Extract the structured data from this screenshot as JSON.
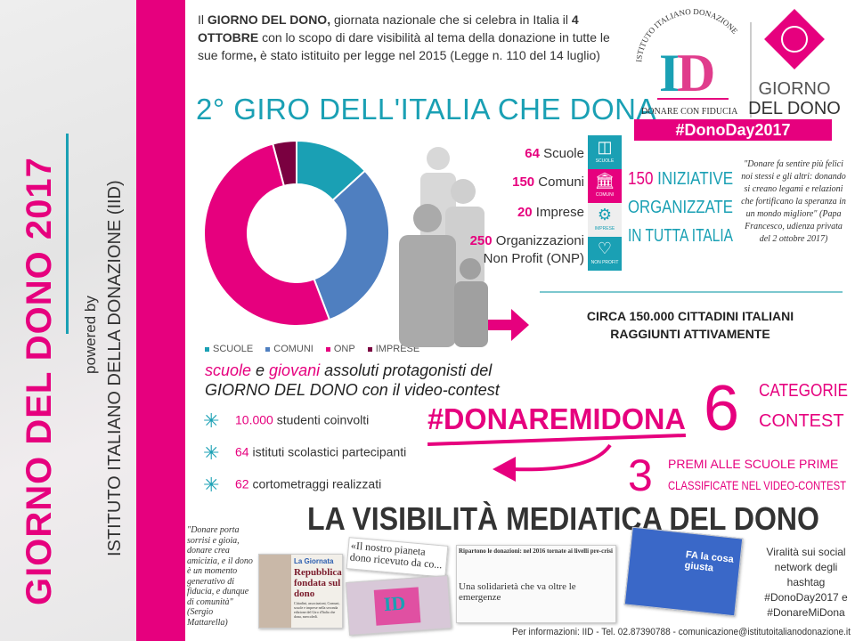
{
  "sidebar": {
    "title": "GIORNO DEL DONO 2017",
    "powered_by": "powered by",
    "institute": "ISTITUTO ITALIANO DELLA DONAZIONE (IID)"
  },
  "intro": {
    "p1": "Il ",
    "b1": "GIORNO DEL DONO,",
    "p2": " giornata nazionale che si celebra in Italia il ",
    "b2": "4 OTTOBRE",
    "p3": " con lo scopo di dare visibilità al tema della donazione in tutte le sue forme",
    "b3": ",",
    "p4": " è stato istituito per legge nel 2015 (Legge n. 110 del 14 luglio)"
  },
  "heading": "2° GIRO DELL'ITALIA CHE DONA",
  "logo": {
    "arc_text": "ISTITUTO ITALIANO DONAZIONE",
    "mark": "ID",
    "tagline": "DONARE CON FIDUCIA",
    "brand1": "GIORNO",
    "brand2": "DEL DONO",
    "hashtag": "#DonoDay2017"
  },
  "chart_data": {
    "type": "pie",
    "donut": true,
    "categories": [
      "SCUOLE",
      "COMUNI",
      "ONP",
      "IMPRESE"
    ],
    "values": [
      64,
      150,
      250,
      20
    ],
    "colors": [
      "#1aa0b4",
      "#4f7fc0",
      "#e6007e",
      "#7a0040"
    ],
    "legend": "bottom"
  },
  "counts": [
    {
      "num": "64",
      "label": " Scuole",
      "icon": "book-icon",
      "icon_label": "SCUOLE",
      "color": "#1aa0b4"
    },
    {
      "num": "150",
      "label": " Comuni",
      "icon": "building-icon",
      "icon_label": "COMUNI",
      "color": "#e6007e"
    },
    {
      "num": "20",
      "label": " Imprese",
      "icon": "gears-icon",
      "icon_label": "IMPRESE",
      "color": "#eeeeee"
    },
    {
      "num": "250",
      "label": " Organizzazioni Non Profit (ONP)",
      "icon": "heart-icon",
      "icon_label": "NON PROFIT",
      "color": "#1aa0b4"
    }
  ],
  "initiatives": {
    "num": "150",
    "l1": " INIZIATIVE",
    "l2": "ORGANIZZATE",
    "l3": "IN TUTTA ITALIA"
  },
  "quote_pope": "\"Donare fa sentire più felici noi stessi e gli altri: donando si creano legami e relazioni che fortificano la speranza in un mondo migliore\" (Papa Francesco, udienza privata del 2 ottobre 2017)",
  "circa": {
    "l1": "CIRCA 150.000 CITTADINI ITALIANI",
    "l2": "RAGGIUNTI ATTIVAMENTE"
  },
  "protag": {
    "w1": "scuole",
    "w2": " e ",
    "w3": "giovani",
    "w4": " assoluti protagonisti del",
    "l2": "GIORNO DEL DONO con il video-contest"
  },
  "stats": [
    {
      "num": "10.000",
      "label": " studenti coinvolti"
    },
    {
      "num": "64",
      "label": " istituti scolastici partecipanti"
    },
    {
      "num": "62",
      "label": " cortometraggi realizzati"
    }
  ],
  "contest": {
    "hashtag": "#DONAREMIDONA",
    "six": "6",
    "cat1": "CATEGORIE",
    "cat2": "CONTEST",
    "three": "3",
    "premi1": "PREMI ALLE SCUOLE PRIME",
    "premi2": "CLASSIFICATE NEL VIDEO-CONTEST"
  },
  "media": {
    "title": "LA VISIBILITÀ MEDIATICA DEL DONO",
    "quote": "\"Donare porta sorrisi e gioia, donare crea amicizia, e il dono è un momento generativo di fiducia, e dunque di comunità\" (Sergio Mattarella)",
    "clip1_kicker": "La Giornata",
    "clip1_head": "Repubblica fondata sul dono",
    "clip1_body": "Cittadini, associazioni, Comuni, scuole e imprese nella seconda edizione del Giro d'Italia che dona, mercoledì.",
    "clip2_head": "«Il nostro pianeta dono ricevuto da co...",
    "clip3_head": "Ripartono le donazioni: nel 2016 tornate ai livelli pre-crisi",
    "clip4_head": "Una solidarietà che va oltre le emergenze",
    "tv_text": "FA la cosa giusta",
    "viral": "Viralità sui social network degli hashtag #DonoDay2017 e #DonareMiDona"
  },
  "footer": "Per informazioni: IID - Tel. 02.87390788 - comunicazione@istitutoitalianodonazione.it"
}
